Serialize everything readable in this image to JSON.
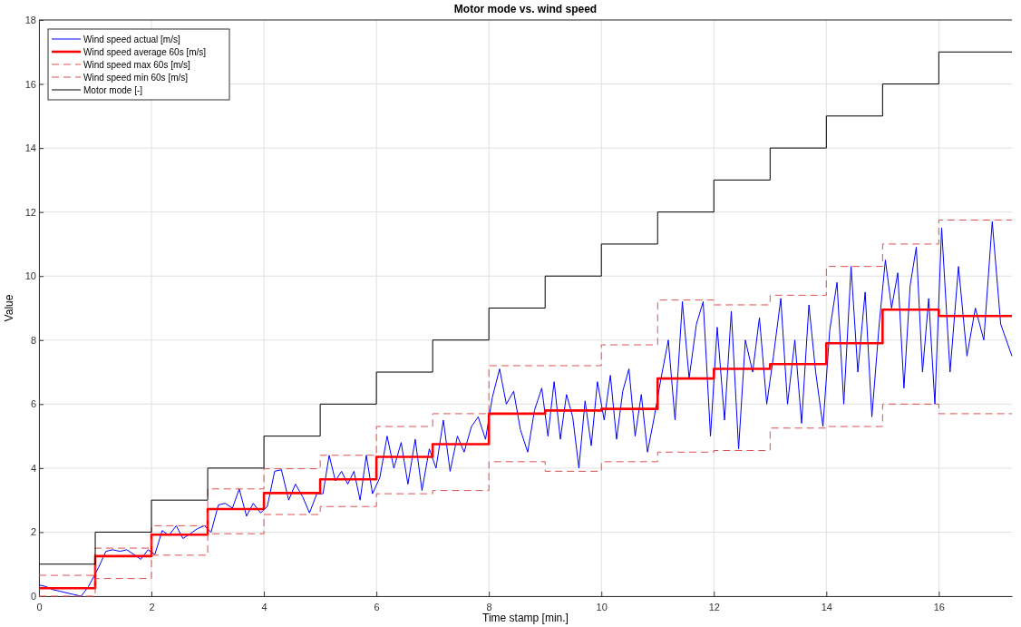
{
  "chart_data": {
    "type": "line",
    "title": "Motor mode vs. wind speed",
    "xlabel": "Time stamp [min.]",
    "ylabel": "Value",
    "xlim": [
      0,
      17.3
    ],
    "xticks": [
      0,
      2,
      4,
      6,
      8,
      10,
      12,
      14,
      16
    ],
    "ylim": [
      0,
      18
    ],
    "yticks": [
      0,
      2,
      4,
      6,
      8,
      10,
      12,
      14,
      16,
      18
    ],
    "grid": true,
    "legend": "top left",
    "series": [
      {
        "name": "Wind speed actual [m/s]",
        "color": "#0000ff",
        "line_style": "solid",
        "x": [
          0,
          0.12,
          0.25,
          0.38,
          0.5,
          0.62,
          0.75,
          0.88,
          0.97,
          1.06,
          1.19,
          1.31,
          1.44,
          1.56,
          1.69,
          1.81,
          1.94,
          2.06,
          2.19,
          2.31,
          2.44,
          2.56,
          2.69,
          2.81,
          2.94,
          3.06,
          3.19,
          3.31,
          3.44,
          3.56,
          3.69,
          3.81,
          3.94,
          4.06,
          4.19,
          4.31,
          4.44,
          4.56,
          4.69,
          4.81,
          4.94,
          5.05,
          5.16,
          5.27,
          5.38,
          5.49,
          5.6,
          5.71,
          5.82,
          5.93,
          6.06,
          6.19,
          6.31,
          6.44,
          6.56,
          6.69,
          6.81,
          6.94,
          7.06,
          7.19,
          7.31,
          7.44,
          7.56,
          7.69,
          7.81,
          7.94,
          8.06,
          8.19,
          8.31,
          8.44,
          8.56,
          8.69,
          8.81,
          8.94,
          9.05,
          9.16,
          9.27,
          9.38,
          9.49,
          9.6,
          9.71,
          9.82,
          9.93,
          10.05,
          10.16,
          10.27,
          10.38,
          10.49,
          10.6,
          10.71,
          10.82,
          10.93,
          11.06,
          11.19,
          11.31,
          11.44,
          11.56,
          11.69,
          11.81,
          11.94,
          12.06,
          12.19,
          12.31,
          12.44,
          12.56,
          12.69,
          12.81,
          12.94,
          13.06,
          13.19,
          13.31,
          13.44,
          13.56,
          13.69,
          13.81,
          13.94,
          14.06,
          14.19,
          14.31,
          14.44,
          14.56,
          14.69,
          14.81,
          14.94,
          15.05,
          15.16,
          15.27,
          15.38,
          15.49,
          15.6,
          15.71,
          15.82,
          15.93,
          16.05,
          16.2,
          16.35,
          16.5,
          16.65,
          16.8,
          16.95,
          17.1,
          17.3
        ],
        "values": [
          0.35,
          0.3,
          0.2,
          0.15,
          0.1,
          0.05,
          0,
          0.3,
          0.6,
          0.9,
          1.4,
          1.45,
          1.4,
          1.45,
          1.3,
          1.15,
          1.45,
          1.3,
          2.05,
          1.9,
          2.2,
          1.8,
          1.95,
          2.1,
          2.2,
          2.0,
          2.85,
          2.9,
          2.75,
          3.35,
          2.5,
          2.9,
          2.6,
          2.8,
          3.9,
          3.95,
          3.0,
          3.5,
          3.1,
          2.6,
          3.2,
          3.2,
          4.4,
          3.6,
          3.9,
          3.5,
          3.9,
          3.0,
          4.4,
          3.2,
          3.7,
          5.0,
          4.0,
          4.8,
          3.5,
          4.9,
          3.3,
          4.6,
          4.0,
          5.5,
          3.9,
          5.0,
          4.5,
          5.3,
          5.6,
          4.9,
          6.2,
          7.1,
          6.0,
          6.4,
          5.2,
          4.5,
          5.8,
          6.5,
          5.0,
          6.7,
          4.9,
          6.3,
          5.6,
          4.0,
          6.1,
          4.7,
          6.7,
          5.5,
          6.9,
          4.9,
          6.4,
          7.1,
          5.0,
          6.3,
          4.5,
          5.5,
          6.8,
          8.0,
          5.5,
          9.2,
          6.8,
          8.5,
          9.2,
          5.0,
          8.4,
          5.5,
          8.9,
          4.6,
          8.0,
          7.0,
          8.7,
          6.0,
          7.5,
          9.3,
          6.0,
          8.0,
          5.4,
          9.1,
          7.0,
          5.3,
          8.3,
          9.8,
          6.0,
          10.3,
          7.0,
          9.5,
          5.6,
          8.5,
          10.5,
          9.0,
          10.1,
          6.5,
          9.7,
          10.9,
          7.0,
          9.3,
          6.0,
          11.5,
          7.0,
          10.3,
          7.5,
          9.0,
          8.0,
          11.7,
          8.5,
          7.5
        ]
      },
      {
        "name": "Wind speed average 60s [m/s]",
        "color": "#ff0000",
        "type": "step",
        "line_style": "solid",
        "x": [
          0,
          1,
          2,
          3,
          4,
          5,
          6,
          7,
          8,
          9,
          10,
          11,
          12,
          13,
          14,
          15,
          16,
          17.3
        ],
        "values": [
          0.25,
          1.25,
          1.92,
          2.72,
          3.22,
          3.65,
          4.35,
          4.75,
          5.7,
          5.8,
          5.85,
          6.8,
          7.1,
          7.25,
          7.9,
          8.95,
          8.75,
          8.75
        ]
      },
      {
        "name": "Wind speed max 60s [m/s]",
        "color": "#e05050",
        "type": "step",
        "line_style": "dashed",
        "x": [
          0,
          1,
          2,
          3,
          4,
          5,
          6,
          7,
          8,
          9,
          10,
          11,
          12,
          13,
          14,
          15,
          16,
          17.3
        ],
        "values": [
          0.65,
          1.5,
          2.2,
          3.35,
          3.98,
          4.4,
          5.3,
          5.7,
          7.2,
          7.2,
          7.85,
          9.25,
          9.1,
          9.4,
          10.3,
          11.0,
          11.75,
          11.75
        ]
      },
      {
        "name": "Wind speed min 60s [m/s]",
        "color": "#e05050",
        "type": "step",
        "line_style": "dashed",
        "x": [
          0,
          1,
          2,
          3,
          4,
          5,
          6,
          7,
          8,
          9,
          10,
          11,
          12,
          13,
          14,
          15,
          16,
          17.3
        ],
        "values": [
          0,
          0.55,
          1.28,
          1.95,
          2.55,
          2.8,
          3.2,
          3.3,
          4.2,
          3.9,
          4.2,
          4.5,
          4.55,
          5.25,
          5.3,
          6.0,
          5.7,
          5.7
        ]
      },
      {
        "name": "Motor mode [-]",
        "color": "#000000",
        "type": "step",
        "line_style": "solid",
        "x": [
          0,
          1,
          2,
          3,
          4,
          5,
          6,
          7,
          8,
          9,
          10,
          11,
          12,
          13,
          14,
          15,
          16,
          17.3
        ],
        "values": [
          1,
          2,
          3,
          4,
          5,
          6,
          7,
          8,
          9,
          10,
          11,
          12,
          13,
          14,
          15,
          16,
          17,
          17
        ]
      }
    ]
  }
}
